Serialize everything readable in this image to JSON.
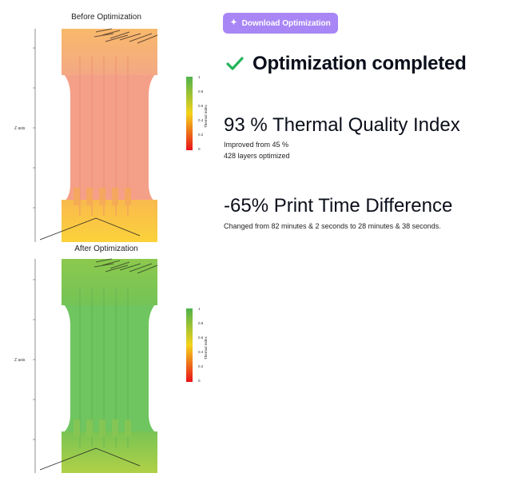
{
  "panels": {
    "before": {
      "title": "Before Optimization",
      "z_axis_label": "Z axis",
      "colorbar_label": "Thermal Index",
      "colorbar_ticks": [
        "1",
        "0.8",
        "0.6",
        "0.4",
        "0.2",
        "0"
      ]
    },
    "after": {
      "title": "After Optimization",
      "z_axis_label": "Z axis",
      "colorbar_label": "Thermal Index",
      "colorbar_ticks": [
        "1",
        "0.8",
        "0.6",
        "0.4",
        "0.2",
        "0"
      ]
    }
  },
  "actions": {
    "download_label": "Download Optimization",
    "download_icon": "sparkle-icon"
  },
  "status": {
    "text": "Optimization completed",
    "icon": "check-icon",
    "color": "#22b45a"
  },
  "metrics": {
    "quality": {
      "title": "93 % Thermal Quality Index",
      "line1": "Improved from 45 %",
      "line2": "428 layers optimized"
    },
    "time": {
      "title": "-65% Print Time Difference",
      "line1": "Changed from 82 minutes & 2 seconds to 28 minutes & 38 seconds."
    }
  },
  "colors": {
    "accent": "#a986f5",
    "before_top": "#f7b56a",
    "before_mid": "#f4a088",
    "before_bottom": "#f8c040",
    "after_main": "#6fc55f",
    "after_bottom": "#a8cf48"
  }
}
